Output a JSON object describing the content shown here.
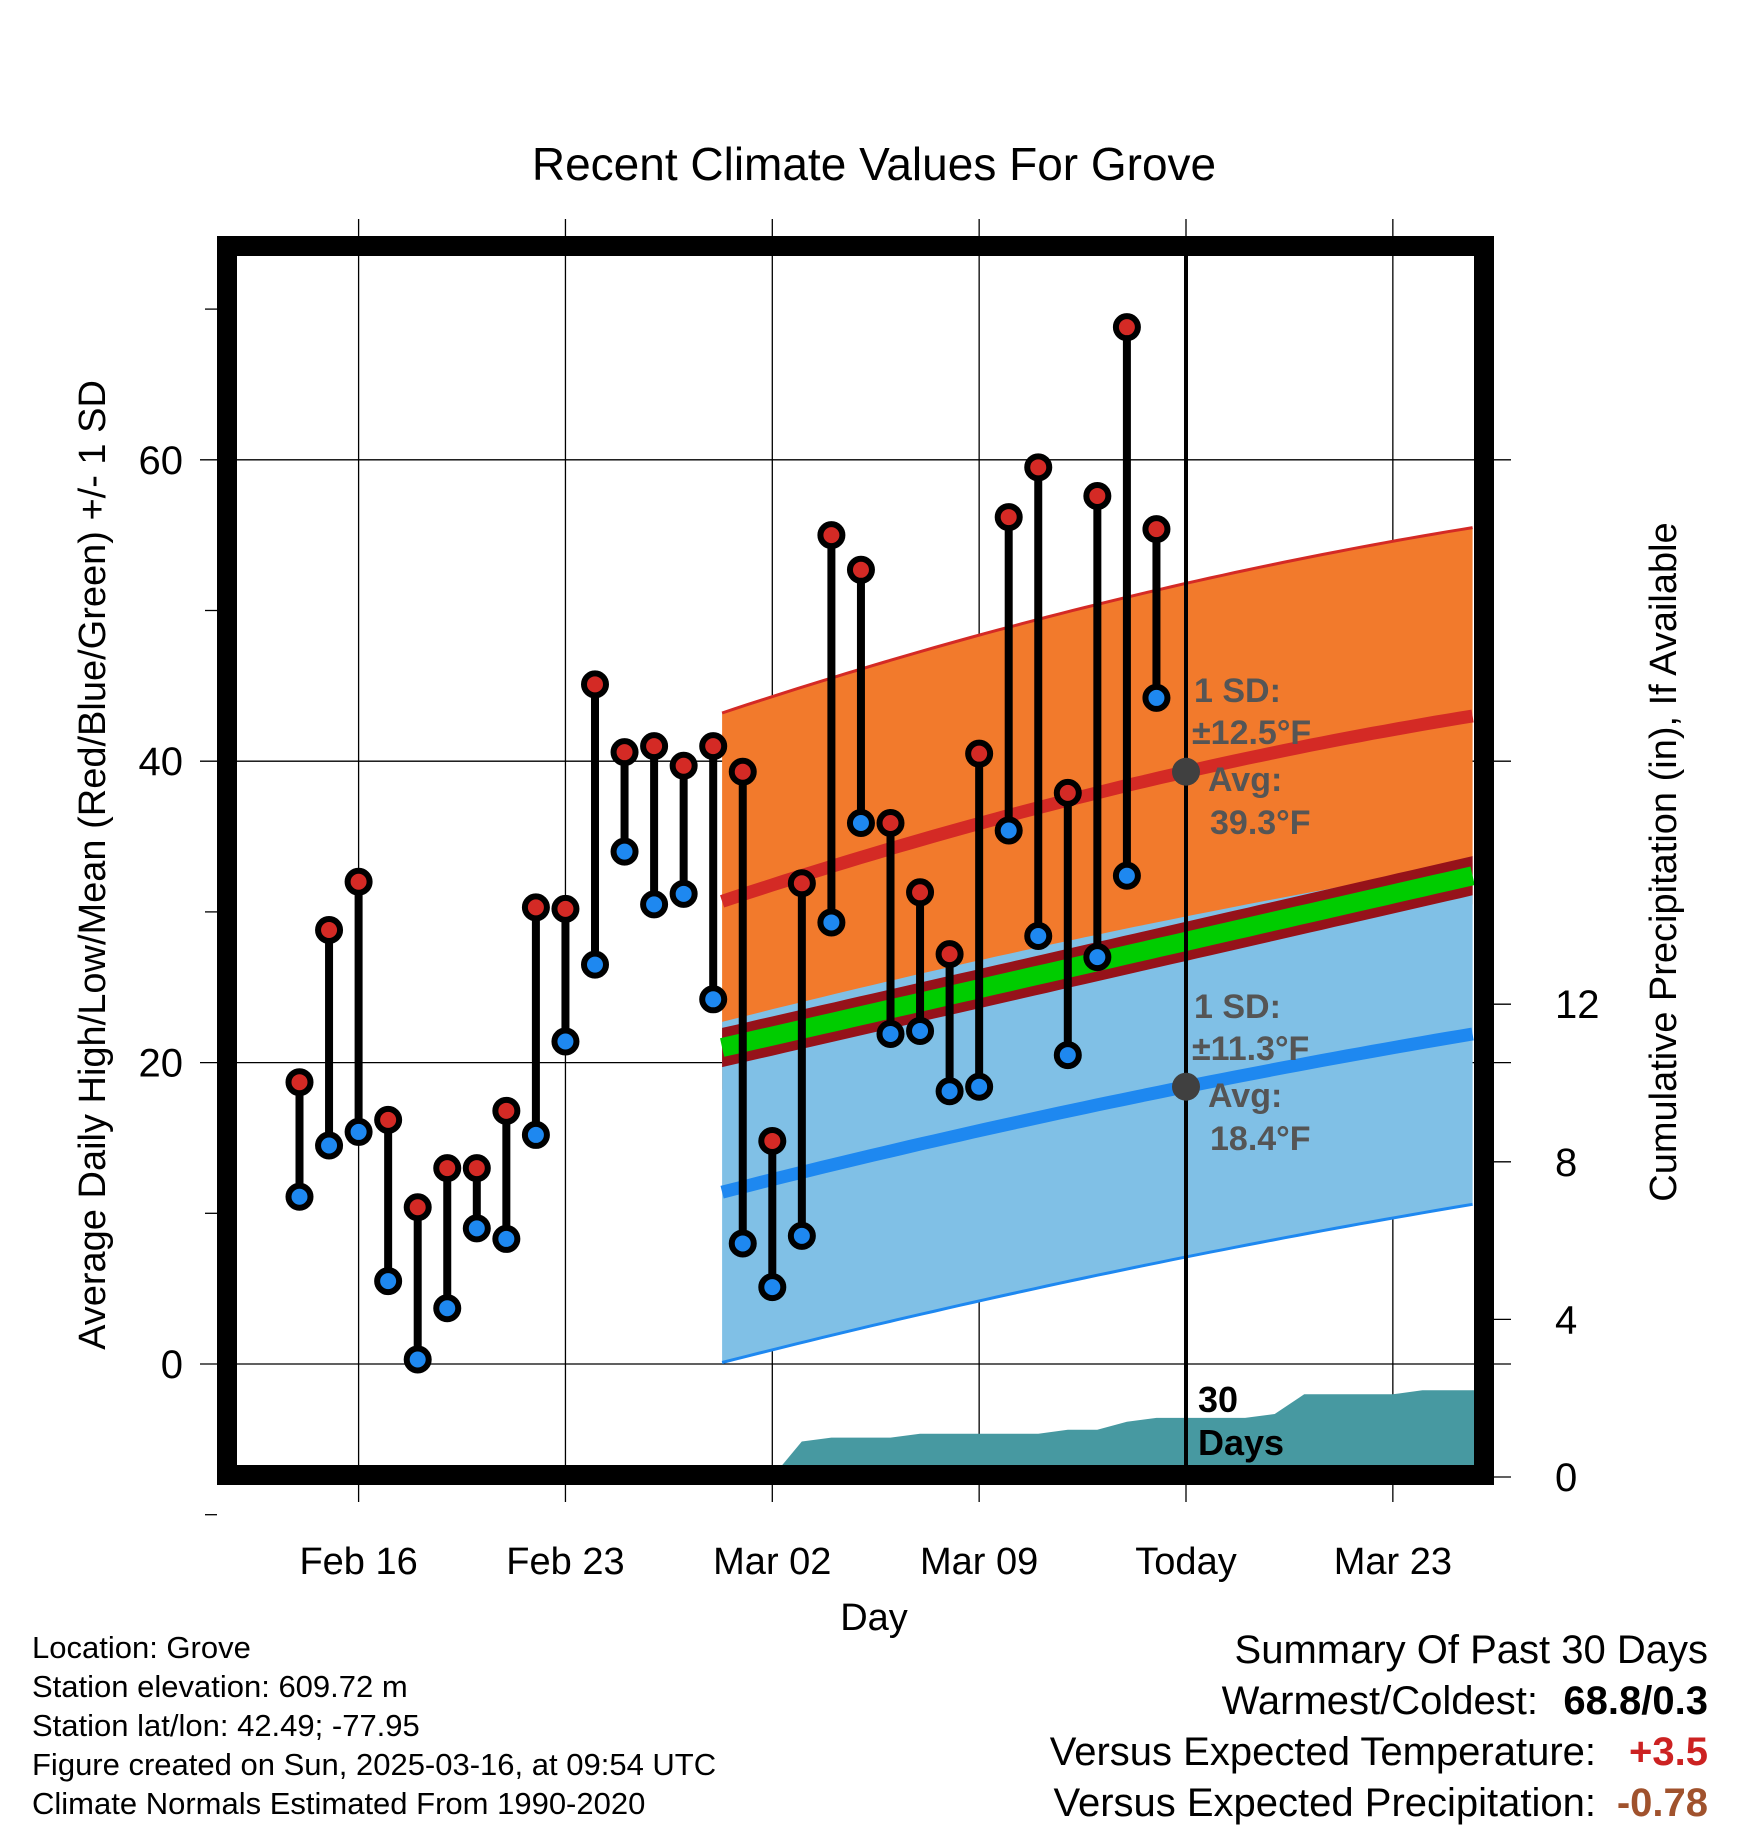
{
  "chart_data": {
    "type": "line",
    "title": "Recent Climate Values For Grove",
    "xlabel": "Day",
    "ylabel": "Average Daily High/Low/Mean (Red/Blue/Green) +/- 1 SD",
    "y2label": "Cumulative Precipitation (in), If Available",
    "x_tick_labels": [
      "Feb 16",
      "Feb 23",
      "Mar 02",
      "Mar 09",
      "Today",
      "Mar 23"
    ],
    "y_ticks": [
      0,
      20,
      40,
      60
    ],
    "y2_ticks": [
      0,
      4,
      8,
      12
    ],
    "ylim": [
      -7.1,
      74.7
    ],
    "y2lim": [
      0,
      20
    ],
    "xlim": [
      -15.7,
      9.7
    ],
    "grid": true,
    "today_x": 0,
    "days": [
      -15,
      -14,
      -13,
      -12,
      -11,
      -10,
      -9,
      -8,
      -7,
      -6,
      -5,
      -4,
      -3,
      -2,
      -1,
      0,
      1,
      2,
      3,
      4,
      5,
      6,
      7,
      8,
      9,
      10,
      11,
      12,
      13,
      14,
      15,
      16,
      17,
      18,
      19,
      20,
      21,
      22,
      23,
      24,
      25
    ],
    "daily_high": [
      18.7,
      28.8,
      32.0,
      16.2,
      10.4,
      13.0,
      13.0,
      16.8,
      30.3,
      30.2,
      45.1,
      40.6,
      41.0,
      39.7,
      41.0,
      39.3,
      14.8,
      31.9,
      55.0,
      52.7,
      35.9,
      31.3,
      27.2,
      40.5,
      56.2,
      59.5,
      37.9,
      57.6,
      68.8,
      55.4
    ],
    "daily_low": [
      11.1,
      14.5,
      15.4,
      5.5,
      0.3,
      3.7,
      9.0,
      8.3,
      15.2,
      21.4,
      26.5,
      34.0,
      30.5,
      31.2,
      24.2,
      8.0,
      5.1,
      8.5,
      29.3,
      35.9,
      21.9,
      22.1,
      18.1,
      18.4,
      35.4,
      28.4,
      20.5,
      27.0,
      32.4,
      44.2
    ],
    "normal_high": {
      "start": 30.7,
      "today": 39.3,
      "end": 43.0
    },
    "normal_high_sd": 12.5,
    "normal_low": {
      "start": 11.4,
      "today": 18.4,
      "end": 21.9
    },
    "normal_low_sd": 11.3,
    "normal_mean": {
      "start": 21.0,
      "end": 32.4
    },
    "cumulative_precip": [
      0.0,
      0.0,
      0.9,
      1.0,
      1.0,
      1.0,
      1.1,
      1.1,
      1.1,
      1.1,
      1.1,
      1.2,
      1.2,
      1.4,
      1.5,
      1.5,
      1.5,
      1.5,
      1.6,
      2.1,
      2.1,
      2.1,
      2.1,
      2.2,
      2.2,
      2.2,
      2.2,
      2.2,
      2.2,
      2.2,
      2.2,
      2.2,
      2.2,
      2.2,
      2.2,
      2.2,
      2.2,
      2.2,
      2.2,
      2.2,
      2.2
    ],
    "annotations": {
      "high_sd_label": "1 SD:",
      "high_sd_value": "±12.5°F",
      "high_avg_label": "Avg:",
      "high_avg_value": "39.3°F",
      "low_sd_label": "1 SD:",
      "low_sd_value": "±11.3°F",
      "low_avg_label": "Avg:",
      "low_avg_value": "18.4°F",
      "precip_label_1": "30",
      "precip_label_2": "Days"
    },
    "colors": {
      "high_band": "#f27a2c",
      "high_line": "#d42a25",
      "low_band": "#80c0e6",
      "low_line": "#1e88f0",
      "mean_band": "#96121a",
      "mean_line": "#00cc00",
      "precip": "#4799a1",
      "high_dot": "#d42a25",
      "low_dot": "#1e88f0",
      "today_dot": "#404040"
    }
  },
  "footer": {
    "location": "Location: Grove",
    "elevation": "Station elevation: 609.72 m",
    "latlon": "Station lat/lon: 42.49; -77.95",
    "created": "Figure created on Sun, 2025-03-16, at 09:54 UTC",
    "normals": "Climate Normals Estimated From 1990-2020"
  },
  "summary": {
    "title": "Summary Of Past 30 Days",
    "warmest_coldest_label": "Warmest/Coldest:",
    "warmest_coldest_value": "68.8/0.3",
    "temp_label": "Versus Expected Temperature:",
    "temp_value": "+3.5",
    "temp_color": "#cc2222",
    "precip_label": "Versus Expected Precipitation:",
    "precip_value": "-0.78",
    "precip_color": "#a0522d"
  }
}
